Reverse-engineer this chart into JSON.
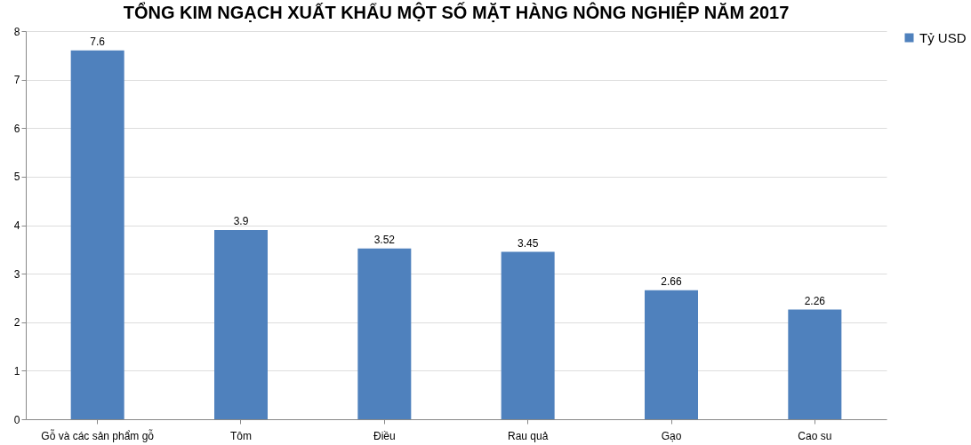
{
  "chart_data": {
    "type": "bar",
    "title": "TỔNG KIM NGẠCH XUẤT KHẨU MỘT SỐ MẶT HÀNG NÔNG NGHIỆP NĂM 2017",
    "categories": [
      "Gỗ và các sản phẩm gỗ",
      "Tôm",
      "Điều",
      "Rau quả",
      "Gạo",
      "Cao su"
    ],
    "series": [
      {
        "name": "Tỷ USD",
        "color": "#4f81bd",
        "values": [
          7.6,
          3.9,
          3.52,
          3.45,
          2.66,
          2.26
        ]
      }
    ],
    "ylim": [
      0,
      8
    ],
    "yticks": [
      0,
      1,
      2,
      3,
      4,
      5,
      6,
      7,
      8
    ],
    "grid": "y",
    "legend": "right",
    "data_labels": true
  }
}
